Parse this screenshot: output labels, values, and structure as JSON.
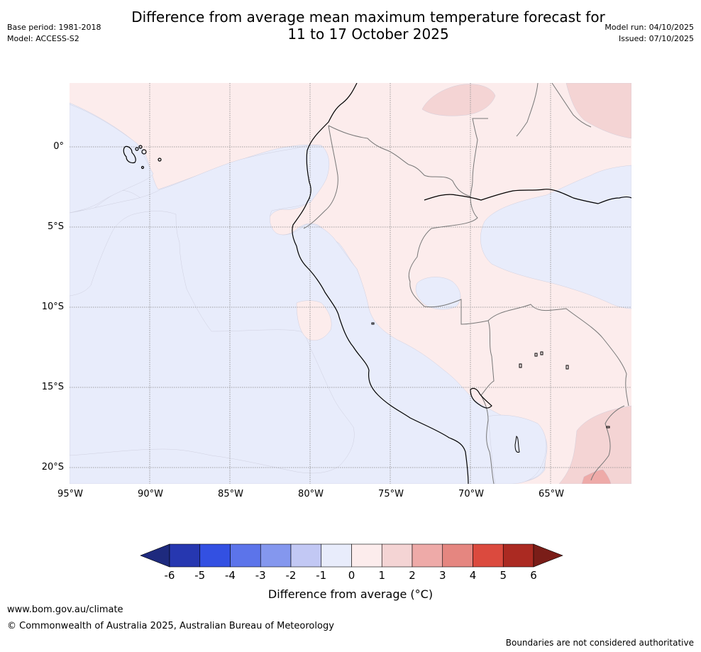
{
  "title_line1": "Difference from average mean maximum temperature forecast for",
  "title_line2": "11 to 17 October 2025",
  "base_period": "Base period: 1981-2018",
  "model": "Model: ACCESS-S2",
  "model_run": "Model run: 04/10/2025",
  "issued": "Issued: 07/10/2025",
  "lat_labels": [
    "0°",
    "5°S",
    "10°S",
    "15°S",
    "20°S"
  ],
  "lon_labels": [
    "95°W",
    "90°W",
    "85°W",
    "80°W",
    "75°W",
    "70°W",
    "65°W"
  ],
  "colorbar": {
    "label": "Difference from average (°C)",
    "ticks": [
      "-6",
      "-5",
      "-4",
      "-3",
      "-2",
      "-1",
      "0",
      "1",
      "2",
      "3",
      "4",
      "5",
      "6"
    ],
    "colors": [
      "#1e2a7e",
      "#2637b0",
      "#3350e2",
      "#5c74ea",
      "#8497ee",
      "#c2c8f4",
      "#e8ecfb",
      "#fcecec",
      "#f4d4d4",
      "#eeaaa8",
      "#e58680",
      "#db4a3e",
      "#ab2a22",
      "#7a1d18"
    ]
  },
  "colors": {
    "land_neutral_pos": "#fcecec",
    "neutral_neg": "#e8ecfb",
    "warm_1_2": "#f4d4d4",
    "warm_2_3": "#eeaaa8"
  },
  "website": "www.bom.gov.au/climate",
  "copyright": "© Commonwealth of Australia 2025, Australian Bureau of Meteorology",
  "disclaimer": "Boundaries are not considered authoritative"
}
